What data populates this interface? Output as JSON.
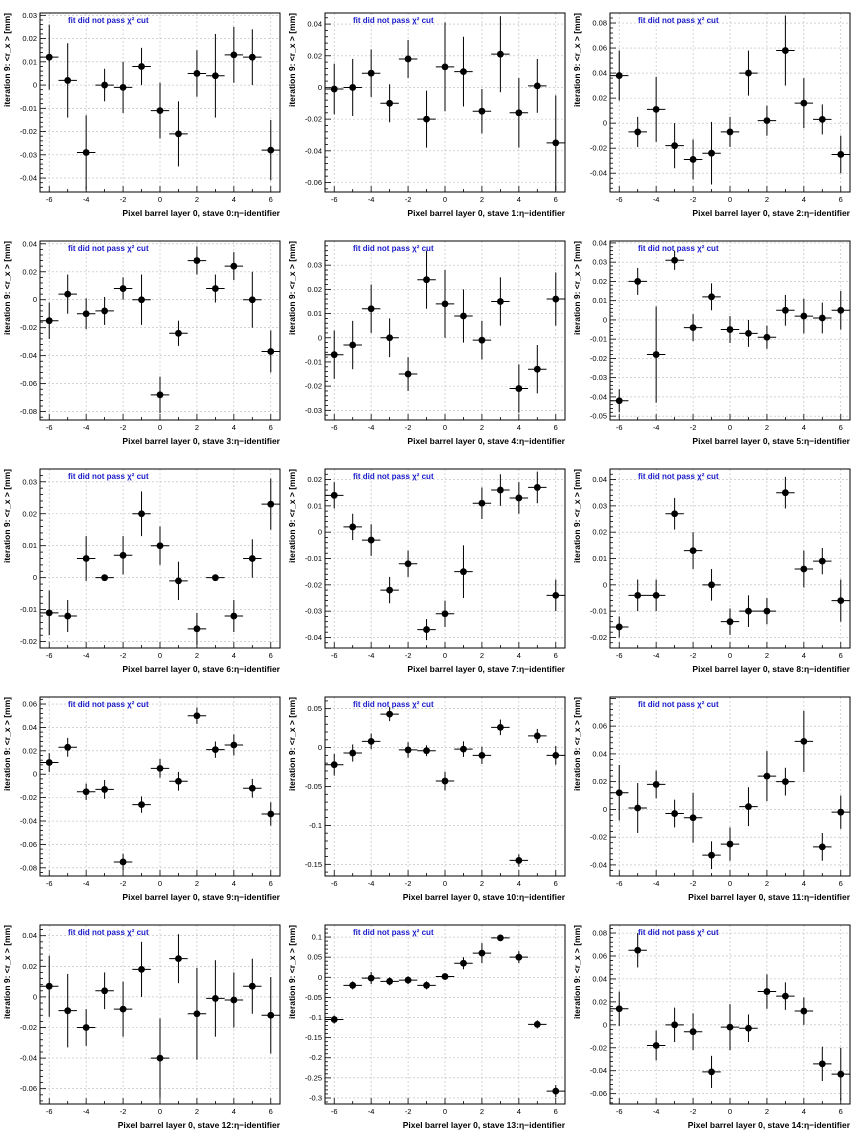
{
  "page": {
    "background": "#ffffff"
  },
  "style": {
    "note_color": "#1a1acc",
    "marker_color": "#000000",
    "grid_color": "#bbbbbb"
  },
  "chart_data": [
    {
      "type": "scatter",
      "title": "",
      "note": "fit did not pass χ² cut",
      "xlabel": "Pixel barrel layer 0, stave 0:η−identifier",
      "ylabel": "iteration 9: <r_x > [mm]",
      "xlim": [
        -6.5,
        6.5
      ],
      "ylim": [
        -0.046,
        0.031
      ],
      "xticks": [
        -6,
        -4,
        -2,
        0,
        2,
        4,
        6
      ],
      "yticks": [
        -0.04,
        -0.03,
        -0.02,
        -0.01,
        0,
        0.01,
        0.02,
        0.03
      ],
      "ytick_labels": [
        "-0.04",
        "-0.03",
        "-0.02",
        "-0.01",
        "0",
        "0.01",
        "0.02",
        "0.03"
      ],
      "x": [
        -6,
        -5,
        -4,
        -3,
        -2,
        -1,
        0,
        1,
        2,
        3,
        4,
        5,
        6
      ],
      "y": [
        0.012,
        0.002,
        -0.029,
        0.0,
        -0.001,
        0.008,
        -0.011,
        -0.021,
        0.005,
        0.004,
        0.013,
        0.012,
        -0.028
      ],
      "yerr": [
        0.014,
        0.016,
        0.016,
        0.007,
        0.011,
        0.008,
        0.012,
        0.014,
        0.01,
        0.018,
        0.012,
        0.012,
        0.013
      ]
    },
    {
      "type": "scatter",
      "title": "",
      "note": "fit did not pass χ² cut",
      "xlabel": "Pixel barrel layer 0, stave 1:η−identifier",
      "ylabel": "iteration 9: <r_x > [mm]",
      "xlim": [
        -6.5,
        6.5
      ],
      "ylim": [
        -0.066,
        0.047
      ],
      "xticks": [
        -6,
        -4,
        -2,
        0,
        2,
        4,
        6
      ],
      "yticks": [
        -0.06,
        -0.04,
        -0.02,
        0,
        0.02,
        0.04
      ],
      "ytick_labels": [
        "-0.06",
        "-0.04",
        "-0.02",
        "0",
        "0.02",
        "0.04"
      ],
      "x": [
        -6,
        -5,
        -4,
        -3,
        -2,
        -1,
        0,
        1,
        2,
        3,
        4,
        5,
        6
      ],
      "y": [
        -0.001,
        0.0,
        0.009,
        -0.01,
        0.018,
        -0.02,
        0.013,
        0.01,
        -0.015,
        0.021,
        -0.016,
        0.001,
        -0.035
      ],
      "yerr": [
        0.016,
        0.018,
        0.015,
        0.012,
        0.012,
        0.018,
        0.028,
        0.022,
        0.014,
        0.024,
        0.022,
        0.017,
        0.03
      ]
    },
    {
      "type": "scatter",
      "title": "",
      "note": "fit did not pass χ² cut",
      "xlabel": "Pixel barrel layer 0, stave 2:η−identifier",
      "ylabel": "iteration 9: <r_x > [mm]",
      "xlim": [
        -6.5,
        6.5
      ],
      "ylim": [
        -0.055,
        0.088
      ],
      "xticks": [
        -6,
        -4,
        -2,
        0,
        2,
        4,
        6
      ],
      "yticks": [
        -0.04,
        -0.02,
        0,
        0.02,
        0.04,
        0.06,
        0.08
      ],
      "ytick_labels": [
        "-0.04",
        "-0.02",
        "0",
        "0.02",
        "0.04",
        "0.06",
        "0.08"
      ],
      "x": [
        -6,
        -5,
        -4,
        -3,
        -2,
        -1,
        0,
        1,
        2,
        3,
        4,
        5,
        6
      ],
      "y": [
        0.038,
        -0.007,
        0.011,
        -0.018,
        -0.029,
        -0.024,
        -0.007,
        0.04,
        0.002,
        0.058,
        0.016,
        0.003,
        -0.025
      ],
      "yerr": [
        0.02,
        0.012,
        0.026,
        0.018,
        0.016,
        0.025,
        0.012,
        0.018,
        0.012,
        0.028,
        0.02,
        0.012,
        0.015
      ]
    },
    {
      "type": "scatter",
      "title": "",
      "note": "fit did not pass χ² cut",
      "xlabel": "Pixel barrel layer 0, stave 3:η−identifier",
      "ylabel": "iteration 9: <r_x > [mm]",
      "xlim": [
        -6.5,
        6.5
      ],
      "ylim": [
        -0.086,
        0.042
      ],
      "xticks": [
        -6,
        -4,
        -2,
        0,
        2,
        4,
        6
      ],
      "yticks": [
        -0.08,
        -0.06,
        -0.04,
        -0.02,
        0,
        0.02,
        0.04
      ],
      "ytick_labels": [
        "-0.08",
        "-0.06",
        "-0.04",
        "-0.02",
        "0",
        "0.02",
        "0.04"
      ],
      "x": [
        -6,
        -5,
        -4,
        -3,
        -2,
        -1,
        0,
        1,
        2,
        3,
        4,
        5,
        6
      ],
      "y": [
        -0.015,
        0.004,
        -0.01,
        -0.008,
        0.008,
        0.0,
        -0.068,
        -0.024,
        0.028,
        0.008,
        0.024,
        0.0,
        -0.037
      ],
      "yerr": [
        0.013,
        0.014,
        0.011,
        0.01,
        0.008,
        0.018,
        0.013,
        0.009,
        0.01,
        0.01,
        0.01,
        0.02,
        0.015
      ]
    },
    {
      "type": "scatter",
      "title": "",
      "note": "fit did not pass χ² cut",
      "xlabel": "Pixel barrel layer 0, stave 4:η−identifier",
      "ylabel": "iteration 9: <r_x > [mm]",
      "xlim": [
        -6.5,
        6.5
      ],
      "ylim": [
        -0.034,
        0.04
      ],
      "xticks": [
        -6,
        -4,
        -2,
        0,
        2,
        4,
        6
      ],
      "yticks": [
        -0.03,
        -0.02,
        -0.01,
        0,
        0.01,
        0.02,
        0.03
      ],
      "ytick_labels": [
        "-0.03",
        "-0.02",
        "-0.01",
        "0",
        "0.01",
        "0.02",
        "0.03"
      ],
      "x": [
        -6,
        -5,
        -4,
        -3,
        -2,
        -1,
        0,
        1,
        2,
        3,
        4,
        5,
        6
      ],
      "y": [
        -0.007,
        -0.003,
        0.012,
        0.0,
        -0.015,
        0.024,
        0.014,
        0.009,
        -0.001,
        0.015,
        -0.021,
        -0.013,
        0.016
      ],
      "yerr": [
        0.01,
        0.01,
        0.01,
        0.008,
        0.007,
        0.012,
        0.014,
        0.011,
        0.008,
        0.01,
        0.01,
        0.01,
        0.011
      ]
    },
    {
      "type": "scatter",
      "title": "",
      "note": "fit did not pass χ² cut",
      "xlabel": "Pixel barrel layer 0, stave 5:η−identifier",
      "ylabel": "iteration 9: <r_x > [mm]",
      "xlim": [
        -6.5,
        6.5
      ],
      "ylim": [
        -0.052,
        0.041
      ],
      "xticks": [
        -6,
        -4,
        -2,
        0,
        2,
        4,
        6
      ],
      "yticks": [
        -0.05,
        -0.04,
        -0.03,
        -0.02,
        -0.01,
        0,
        0.01,
        0.02,
        0.03,
        0.04
      ],
      "ytick_labels": [
        "-0.05",
        "-0.04",
        "-0.03",
        "-0.02",
        "-0.01",
        "0",
        "0.01",
        "0.02",
        "0.03",
        "0.04"
      ],
      "x": [
        -6,
        -5,
        -4,
        -3,
        -2,
        -1,
        0,
        1,
        2,
        3,
        4,
        5,
        6
      ],
      "y": [
        -0.042,
        0.02,
        -0.018,
        0.031,
        -0.004,
        0.012,
        -0.005,
        -0.007,
        -0.009,
        0.005,
        0.002,
        0.001,
        0.005
      ],
      "yerr": [
        0.006,
        0.007,
        0.025,
        0.005,
        0.007,
        0.007,
        0.007,
        0.007,
        0.006,
        0.008,
        0.009,
        0.008,
        0.01
      ]
    },
    {
      "type": "scatter",
      "title": "",
      "note": "fit did not pass χ² cut",
      "xlabel": "Pixel barrel layer 0, stave 6:η−identifier",
      "ylabel": "iteration 9: <r_x > [mm]",
      "xlim": [
        -6.5,
        6.5
      ],
      "ylim": [
        -0.022,
        0.034
      ],
      "xticks": [
        -6,
        -4,
        -2,
        0,
        2,
        4,
        6
      ],
      "yticks": [
        -0.02,
        -0.01,
        0,
        0.01,
        0.02,
        0.03
      ],
      "ytick_labels": [
        "-0.02",
        "-0.01",
        "0",
        "0.01",
        "0.02",
        "0.03"
      ],
      "x": [
        -6,
        -5,
        -4,
        -3,
        -2,
        -1,
        0,
        1,
        2,
        3,
        4,
        5,
        6
      ],
      "y": [
        -0.011,
        -0.012,
        0.006,
        0.0,
        0.007,
        0.02,
        0.01,
        -0.001,
        -0.016,
        0.0,
        -0.012,
        0.006,
        0.023
      ],
      "yerr": [
        0.007,
        0.005,
        0.007,
        0.0,
        0.006,
        0.007,
        0.006,
        0.006,
        0.005,
        0.0,
        0.005,
        0.006,
        0.008
      ]
    },
    {
      "type": "scatter",
      "title": "",
      "note": "fit did not pass χ² cut",
      "xlabel": "Pixel barrel layer 0, stave 7:η−identifier",
      "ylabel": "iteration 9: <r_x > [mm]",
      "xlim": [
        -6.5,
        6.5
      ],
      "ylim": [
        -0.044,
        0.024
      ],
      "xticks": [
        -6,
        -4,
        -2,
        0,
        2,
        4,
        6
      ],
      "yticks": [
        -0.04,
        -0.03,
        -0.02,
        -0.01,
        0,
        0.01,
        0.02
      ],
      "ytick_labels": [
        "-0.04",
        "-0.03",
        "-0.02",
        "-0.01",
        "0",
        "0.01",
        "0.02"
      ],
      "x": [
        -6,
        -5,
        -4,
        -3,
        -2,
        -1,
        0,
        1,
        2,
        3,
        4,
        5,
        6
      ],
      "y": [
        0.014,
        0.002,
        -0.003,
        -0.022,
        -0.012,
        -0.037,
        -0.031,
        -0.015,
        0.011,
        0.016,
        0.013,
        0.017,
        -0.024
      ],
      "yerr": [
        0.005,
        0.005,
        0.006,
        0.005,
        0.005,
        0.004,
        0.005,
        0.01,
        0.006,
        0.006,
        0.006,
        0.006,
        0.006
      ]
    },
    {
      "type": "scatter",
      "title": "",
      "note": "fit did not pass χ² cut",
      "xlabel": "Pixel barrel layer 0, stave 8:η−identifier",
      "ylabel": "iteration 9: <r_x > [mm]",
      "xlim": [
        -6.5,
        6.5
      ],
      "ylim": [
        -0.024,
        0.044
      ],
      "xticks": [
        -6,
        -4,
        -2,
        0,
        2,
        4,
        6
      ],
      "yticks": [
        -0.02,
        -0.01,
        0,
        0.01,
        0.02,
        0.03,
        0.04
      ],
      "ytick_labels": [
        "-0.02",
        "-0.01",
        "0",
        "0.01",
        "0.02",
        "0.03",
        "0.04"
      ],
      "x": [
        -6,
        -5,
        -4,
        -3,
        -2,
        -1,
        0,
        1,
        2,
        3,
        4,
        5,
        6
      ],
      "y": [
        -0.016,
        -0.004,
        -0.004,
        0.027,
        0.013,
        0.0,
        -0.014,
        -0.01,
        -0.01,
        0.035,
        0.006,
        0.009,
        -0.006
      ],
      "yerr": [
        0.004,
        0.006,
        0.006,
        0.006,
        0.007,
        0.006,
        0.005,
        0.006,
        0.005,
        0.006,
        0.007,
        0.005,
        0.008
      ]
    },
    {
      "type": "scatter",
      "title": "",
      "note": "fit did not pass χ² cut",
      "xlabel": "Pixel barrel layer 0, stave 9:η−identifier",
      "ylabel": "iteration 9: <r_x > [mm]",
      "xlim": [
        -6.5,
        6.5
      ],
      "ylim": [
        -0.087,
        0.066
      ],
      "xticks": [
        -6,
        -4,
        -2,
        0,
        2,
        4,
        6
      ],
      "yticks": [
        -0.08,
        -0.06,
        -0.04,
        -0.02,
        0,
        0.02,
        0.04,
        0.06
      ],
      "ytick_labels": [
        "-0.08",
        "-0.06",
        "-0.04",
        "-0.02",
        "0",
        "0.02",
        "0.04",
        "0.06"
      ],
      "x": [
        -6,
        -5,
        -4,
        -3,
        -2,
        -1,
        0,
        1,
        2,
        3,
        4,
        5,
        6
      ],
      "y": [
        0.01,
        0.023,
        -0.015,
        -0.013,
        -0.075,
        -0.026,
        0.005,
        -0.006,
        0.05,
        0.021,
        0.025,
        -0.012,
        -0.034
      ],
      "yerr": [
        0.008,
        0.008,
        0.007,
        0.008,
        0.007,
        0.007,
        0.008,
        0.008,
        0.007,
        0.007,
        0.009,
        0.008,
        0.01
      ]
    },
    {
      "type": "scatter",
      "title": "",
      "note": "fit did not pass χ² cut",
      "xlabel": "Pixel barrel layer 0, stave 10:η−identifier",
      "ylabel": "iteration 9: <r_x > [mm]",
      "xlim": [
        -6.5,
        6.5
      ],
      "ylim": [
        -0.165,
        0.065
      ],
      "xticks": [
        -6,
        -4,
        -2,
        0,
        2,
        4,
        6
      ],
      "yticks": [
        -0.15,
        -0.1,
        -0.05,
        0,
        0.05
      ],
      "ytick_labels": [
        "-0.15",
        "-0.1",
        "-0.05",
        "0",
        "0.05"
      ],
      "x": [
        -6,
        -5,
        -4,
        -3,
        -2,
        -1,
        0,
        1,
        2,
        3,
        4,
        5,
        6
      ],
      "y": [
        -0.022,
        -0.007,
        0.008,
        0.043,
        -0.003,
        -0.004,
        -0.043,
        -0.002,
        -0.01,
        0.026,
        -0.145,
        0.015,
        -0.01
      ],
      "yerr": [
        0.014,
        0.011,
        0.01,
        0.009,
        0.01,
        0.007,
        0.012,
        0.01,
        0.011,
        0.01,
        0.008,
        0.009,
        0.012
      ]
    },
    {
      "type": "scatter",
      "title": "",
      "note": "fit did not pass χ² cut",
      "xlabel": "Pixel barrel layer 0, stave 11:η−identifier",
      "ylabel": "iteration 9: <r_x > [mm]",
      "xlim": [
        -6.5,
        6.5
      ],
      "ylim": [
        -0.048,
        0.081
      ],
      "xticks": [
        -6,
        -4,
        -2,
        0,
        2,
        4,
        6
      ],
      "yticks": [
        -0.04,
        -0.02,
        0,
        0.02,
        0.04,
        0.06
      ],
      "ytick_labels": [
        "-0.04",
        "-0.02",
        "0",
        "0.02",
        "0.04",
        "0.06"
      ],
      "x": [
        -6,
        -5,
        -4,
        -3,
        -2,
        -1,
        0,
        1,
        2,
        3,
        4,
        5,
        6
      ],
      "y": [
        0.012,
        0.001,
        0.018,
        -0.003,
        -0.006,
        -0.033,
        -0.025,
        0.002,
        0.024,
        0.02,
        0.049,
        -0.027,
        -0.002
      ],
      "yerr": [
        0.02,
        0.018,
        0.01,
        0.01,
        0.018,
        0.01,
        0.012,
        0.014,
        0.018,
        0.01,
        0.022,
        0.01,
        0.012
      ]
    },
    {
      "type": "scatter",
      "title": "",
      "note": "fit did not pass χ² cut",
      "xlabel": "Pixel barrel layer 0, stave 12:η−identifier",
      "ylabel": "iteration 9: <r_x > [mm]",
      "xlim": [
        -6.5,
        6.5
      ],
      "ylim": [
        -0.07,
        0.047
      ],
      "xticks": [
        -6,
        -4,
        -2,
        0,
        2,
        4,
        6
      ],
      "yticks": [
        -0.06,
        -0.04,
        -0.02,
        0,
        0.02,
        0.04
      ],
      "ytick_labels": [
        "-0.06",
        "-0.04",
        "-0.02",
        "0",
        "0.02",
        "0.04"
      ],
      "x": [
        -6,
        -5,
        -4,
        -3,
        -2,
        -1,
        0,
        1,
        2,
        3,
        4,
        5,
        6
      ],
      "y": [
        0.007,
        -0.009,
        -0.02,
        0.004,
        -0.008,
        0.018,
        -0.04,
        0.025,
        -0.011,
        -0.001,
        -0.002,
        0.007,
        -0.012
      ],
      "yerr": [
        0.02,
        0.024,
        0.012,
        0.012,
        0.018,
        0.018,
        0.026,
        0.016,
        0.03,
        0.025,
        0.018,
        0.018,
        0.025
      ]
    },
    {
      "type": "scatter",
      "title": "",
      "note": "fit did not pass χ² cut",
      "xlabel": "Pixel barrel layer 0, stave 13:η−identifier",
      "ylabel": "iteration 9: <r_x > [mm]",
      "xlim": [
        -6.5,
        6.5
      ],
      "ylim": [
        -0.315,
        0.13
      ],
      "xticks": [
        -6,
        -4,
        -2,
        0,
        2,
        4,
        6
      ],
      "yticks": [
        -0.3,
        -0.25,
        -0.2,
        -0.15,
        -0.1,
        -0.05,
        0,
        0.05,
        0.1
      ],
      "ytick_labels": [
        "-0.3",
        "-0.25",
        "-0.2",
        "-0.15",
        "-0.1",
        "-0.05",
        "0",
        "0.05",
        "0.1"
      ],
      "x": [
        -6,
        -5,
        -4,
        -3,
        -2,
        -1,
        0,
        1,
        2,
        3,
        4,
        5,
        6
      ],
      "y": [
        -0.105,
        -0.02,
        -0.002,
        -0.01,
        -0.007,
        -0.02,
        0.002,
        0.035,
        0.06,
        0.098,
        0.05,
        -0.117,
        -0.283
      ],
      "yerr": [
        0.01,
        0.01,
        0.015,
        0.01,
        0.01,
        0.01,
        0.008,
        0.015,
        0.025,
        0.008,
        0.015,
        0.01,
        0.015
      ]
    },
    {
      "type": "scatter",
      "title": "",
      "note": "fit did not pass χ² cut",
      "xlabel": "Pixel barrel layer 0, stave 14:η−identifier",
      "ylabel": "iteration 9: <r_x > [mm]",
      "xlim": [
        -6.5,
        6.5
      ],
      "ylim": [
        -0.069,
        0.087
      ],
      "xticks": [
        -6,
        -4,
        -2,
        0,
        2,
        4,
        6
      ],
      "yticks": [
        -0.06,
        -0.04,
        -0.02,
        0,
        0.02,
        0.04,
        0.06,
        0.08
      ],
      "ytick_labels": [
        "-0.06",
        "-0.04",
        "-0.02",
        "0",
        "0.02",
        "0.04",
        "0.06",
        "0.08"
      ],
      "x": [
        -6,
        -5,
        -4,
        -3,
        -2,
        -1,
        0,
        1,
        2,
        3,
        4,
        5,
        6
      ],
      "y": [
        0.014,
        0.065,
        -0.018,
        0.0,
        -0.006,
        -0.041,
        -0.002,
        -0.003,
        0.029,
        0.025,
        0.012,
        -0.034,
        -0.043
      ],
      "yerr": [
        0.015,
        0.015,
        0.013,
        0.015,
        0.016,
        0.014,
        0.02,
        0.012,
        0.015,
        0.012,
        0.012,
        0.015,
        0.023
      ]
    }
  ]
}
